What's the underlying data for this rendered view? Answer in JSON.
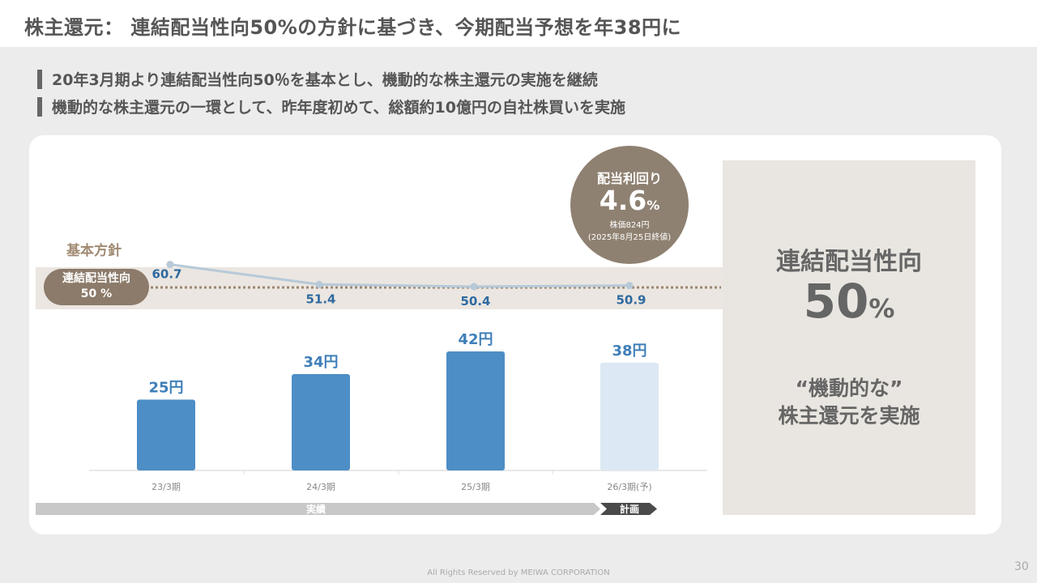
{
  "title": "株主還元： 連結配当性向50%の方針に基づき、今期配当予想を年38円に",
  "bullets": [
    "20年3月期より連結配当性向50％を基本とし、機動的な株主還元の実施を継続",
    "機動的な株主還元の一環として、昨年度初めて、総額約10億円の自社株買いを実施"
  ],
  "policy": {
    "heading": "基本方針",
    "pill_line1": "連結配当性向",
    "pill_line2": "50 %"
  },
  "dividend_yield": {
    "label": "配当利回り",
    "value": "4.6",
    "unit": "%",
    "note1": "株価824円",
    "note2": "(2025年8月25日終値)"
  },
  "right_panel": {
    "label": "連結配当性向",
    "value": "50",
    "unit": "%",
    "text1": "“機動的な”",
    "text2": "株主還元を実施"
  },
  "chart_data": {
    "type": "bar",
    "categories": [
      "23/3期",
      "24/3期",
      "25/3期",
      "26/3期(予)"
    ],
    "bar_series": {
      "values": [
        25,
        34,
        42,
        38
      ],
      "labels": [
        "25円",
        "34円",
        "42円",
        "38円"
      ],
      "unit": "円"
    },
    "payout_ratio_series": {
      "type": "line",
      "values": [
        60.7,
        51.4,
        50.4,
        50.9
      ],
      "labels": [
        "60.7",
        "51.4",
        "50.4",
        "50.9"
      ],
      "target": 50
    },
    "phases": [
      {
        "label": "実績",
        "categories": [
          "23/3期",
          "24/3期",
          "25/3期"
        ]
      },
      {
        "label": "計画",
        "categories": [
          "26/3期(予)"
        ]
      }
    ]
  },
  "colors": {
    "bar_actual": "#4d8ec6",
    "bar_forecast": "#dce8f3",
    "bar_label": "#3f7fb8",
    "line": "#b7c9d8",
    "line_label": "#2f6aa0",
    "target_dotted": "#9c8770",
    "phase_actual": "#c8c8c8",
    "phase_plan": "#4a4a4a"
  },
  "footer": "All Rights Reserved by MEIWA CORPORATION",
  "page_number": "30"
}
